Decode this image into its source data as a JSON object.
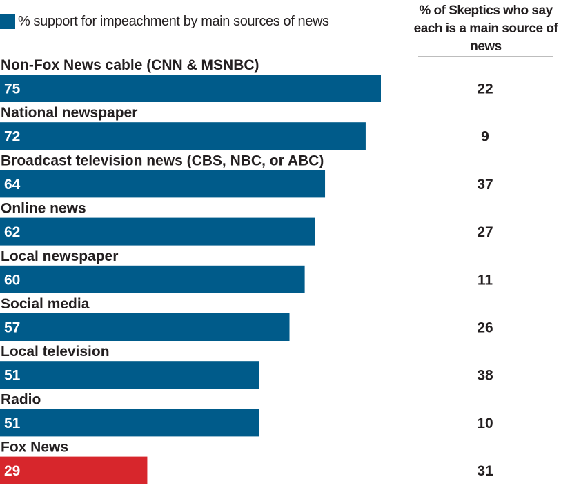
{
  "colors": {
    "bar": "#005b8a",
    "highlight_bar": "#d7262c",
    "text": "#231f20",
    "rule": "#bdbdbd"
  },
  "legend": {
    "label": "% support for impeachment by main sources of news"
  },
  "right_column": {
    "header": "% of Skeptics who say each is a main source of news"
  },
  "chart_data": {
    "type": "bar",
    "orientation": "horizontal",
    "categories": [
      "Non-Fox News cable (CNN & MSNBC)",
      "National newspaper",
      "Broadcast television news (CBS, NBC, or ABC)",
      "Online news",
      "Local newspaper",
      "Social media",
      "Local television",
      "Radio",
      "Fox News"
    ],
    "series": [
      {
        "name": "% support for impeachment by main sources of news",
        "values": [
          75,
          72,
          64,
          62,
          60,
          57,
          51,
          51,
          29
        ]
      },
      {
        "name": "% of Skeptics who say each is a main source of news",
        "values": [
          22,
          9,
          37,
          27,
          11,
          26,
          38,
          10,
          31
        ]
      }
    ],
    "highlighted_category": "Fox News",
    "xlim": [
      0,
      75
    ],
    "grid": false,
    "legend_position": "top-left",
    "title": "",
    "xlabel": "",
    "ylabel": ""
  }
}
